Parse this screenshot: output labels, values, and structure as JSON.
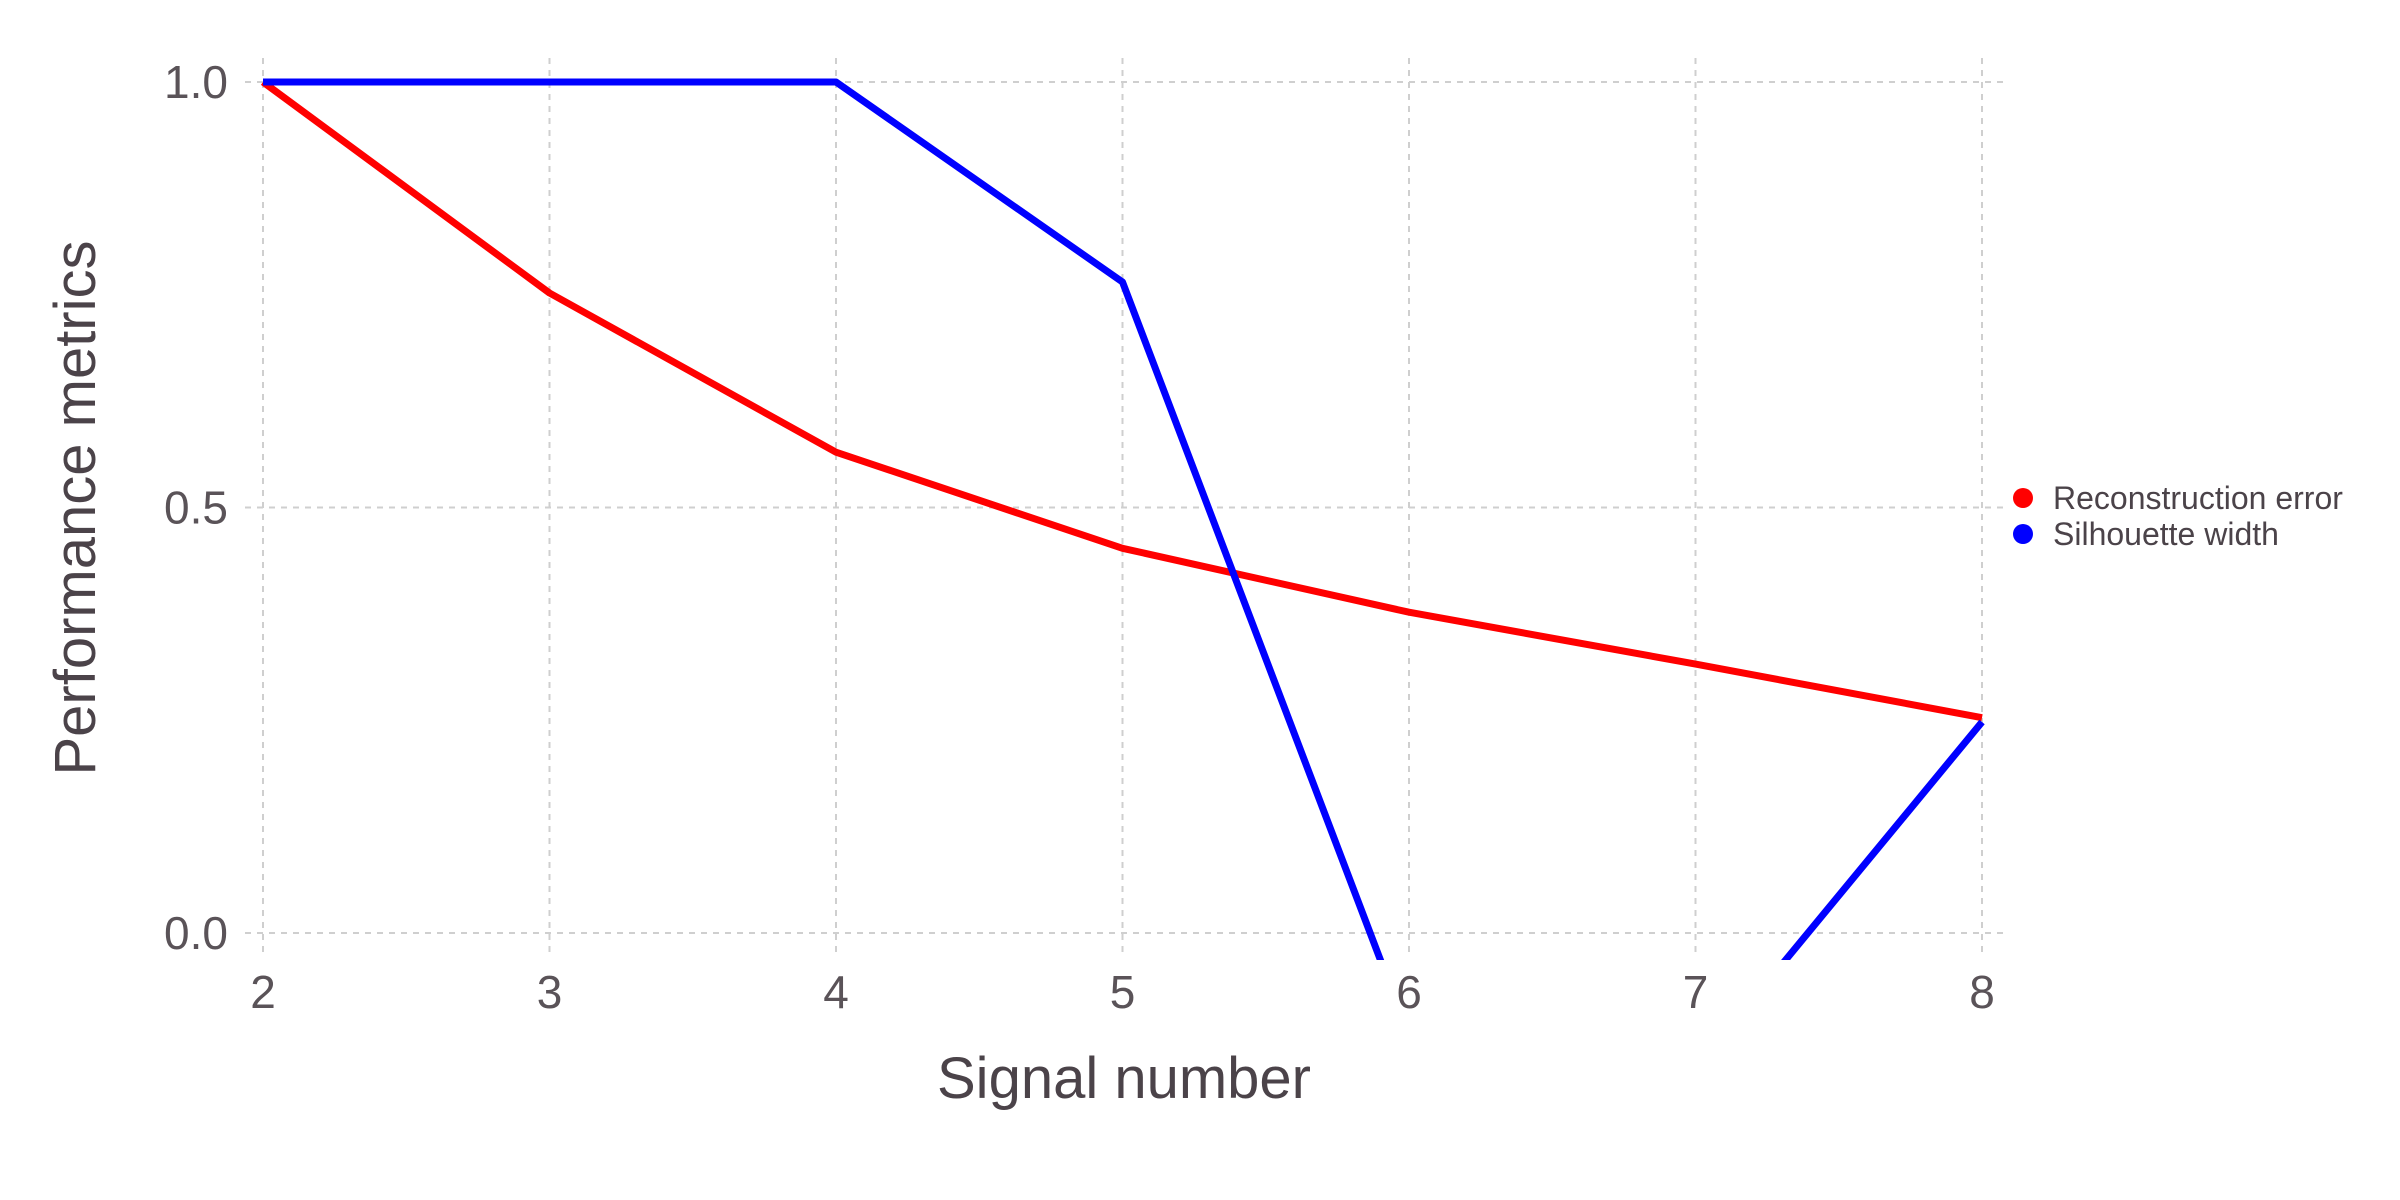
{
  "chart_data": {
    "type": "line",
    "x": [
      2,
      3,
      4,
      5,
      6,
      7,
      8
    ],
    "xlabel": "Signal number",
    "ylabel": "Performance metrics",
    "xlim": [
      2,
      8
    ],
    "ylim": [
      0,
      1
    ],
    "x_ticks": [
      "2",
      "3",
      "4",
      "5",
      "6",
      "7",
      "8"
    ],
    "y_ticks": [
      "0.0",
      "0.5",
      "1.0"
    ],
    "grid": true,
    "legend_position": "right",
    "series": [
      {
        "name": "Reconstruction error",
        "color": "#ff0000",
        "values": [
          1.0,
          0.752,
          0.565,
          0.452,
          0.377,
          0.316,
          0.253
        ]
      },
      {
        "name": "Silhouette width",
        "color": "#0000ff",
        "values": [
          1.0,
          1.0,
          1.0,
          0.765,
          -0.12,
          -0.16,
          0.248
        ]
      }
    ]
  }
}
